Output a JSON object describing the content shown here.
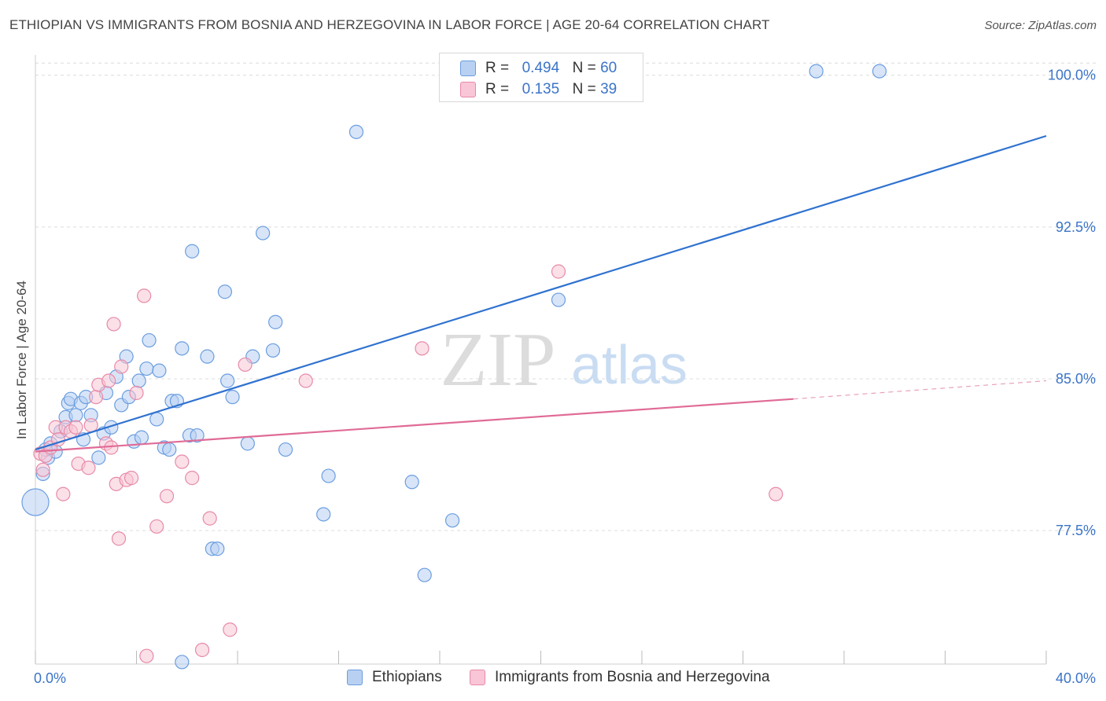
{
  "title": "ETHIOPIAN VS IMMIGRANTS FROM BOSNIA AND HERZEGOVINA IN LABOR FORCE | AGE 20-64 CORRELATION CHART",
  "source": "Source: ZipAtlas.com",
  "watermark": {
    "zip": "ZIP",
    "atlas": "atlas"
  },
  "legend_stats": [
    {
      "r_label": "R =",
      "r_value": "0.494",
      "n_label": "N =",
      "n_value": "60"
    },
    {
      "r_label": "R =",
      "r_value": "0.135",
      "n_label": "N =",
      "n_value": "39"
    }
  ],
  "chart_data": {
    "type": "scatter",
    "xlabel": "",
    "ylabel": "In Labor Force | Age 20-64",
    "xlim": [
      0,
      40
    ],
    "ylim": [
      70.9,
      101.0
    ],
    "x_tick_labels": [
      "0.0%",
      "40.0%"
    ],
    "y_ticks": [
      77.5,
      85.0,
      92.5,
      100.0
    ],
    "y_tick_labels": [
      "77.5%",
      "85.0%",
      "92.5%",
      "100.0%"
    ],
    "grid": true,
    "series": [
      {
        "name": "Ethiopians",
        "color": "#6b9ee0",
        "fill": "#b8d0f2",
        "points": [
          [
            0.0,
            78.9
          ],
          [
            0.3,
            80.3
          ],
          [
            0.5,
            81.1
          ],
          [
            0.6,
            81.8
          ],
          [
            0.8,
            81.4
          ],
          [
            1.0,
            82.4
          ],
          [
            1.2,
            83.1
          ],
          [
            1.3,
            83.8
          ],
          [
            1.4,
            84.0
          ],
          [
            1.6,
            83.2
          ],
          [
            1.8,
            83.8
          ],
          [
            1.9,
            82.0
          ],
          [
            2.0,
            84.1
          ],
          [
            2.2,
            83.2
          ],
          [
            2.5,
            81.1
          ],
          [
            2.7,
            82.3
          ],
          [
            2.8,
            84.3
          ],
          [
            3.0,
            82.6
          ],
          [
            3.2,
            85.1
          ],
          [
            3.4,
            83.7
          ],
          [
            3.6,
            86.1
          ],
          [
            3.7,
            84.1
          ],
          [
            3.9,
            81.9
          ],
          [
            4.1,
            84.9
          ],
          [
            4.2,
            82.1
          ],
          [
            4.4,
            85.5
          ],
          [
            4.5,
            86.9
          ],
          [
            4.8,
            83.0
          ],
          [
            4.9,
            85.4
          ],
          [
            5.1,
            81.6
          ],
          [
            5.3,
            81.5
          ],
          [
            5.4,
            83.9
          ],
          [
            5.6,
            83.9
          ],
          [
            5.8,
            86.5
          ],
          [
            6.1,
            82.2
          ],
          [
            6.2,
            91.3
          ],
          [
            6.4,
            82.2
          ],
          [
            6.8,
            86.1
          ],
          [
            7.0,
            76.6
          ],
          [
            7.2,
            76.6
          ],
          [
            7.5,
            89.3
          ],
          [
            7.6,
            84.9
          ],
          [
            7.8,
            84.1
          ],
          [
            8.4,
            81.8
          ],
          [
            8.6,
            86.1
          ],
          [
            9.0,
            92.2
          ],
          [
            9.4,
            86.4
          ],
          [
            9.5,
            87.8
          ],
          [
            9.9,
            81.5
          ],
          [
            11.6,
            80.2
          ],
          [
            11.4,
            78.3
          ],
          [
            12.7,
            97.2
          ],
          [
            14.9,
            79.9
          ],
          [
            15.4,
            75.3
          ],
          [
            16.5,
            78.0
          ],
          [
            20.7,
            88.9
          ],
          [
            5.8,
            71.0
          ],
          [
            30.9,
            100.2
          ],
          [
            33.4,
            100.2
          ],
          [
            0.4,
            81.5
          ]
        ],
        "trend": {
          "x": [
            0,
            40
          ],
          "y": [
            81.5,
            97.0
          ]
        }
      },
      {
        "name": "Immigrants from Bosnia and Herzegovina",
        "color": "#e88aa8",
        "fill": "#f8c6d6",
        "points": [
          [
            0.2,
            81.3
          ],
          [
            0.3,
            80.5
          ],
          [
            0.4,
            81.2
          ],
          [
            0.6,
            81.6
          ],
          [
            0.8,
            82.6
          ],
          [
            0.9,
            82.0
          ],
          [
            1.1,
            79.3
          ],
          [
            1.2,
            82.6
          ],
          [
            1.4,
            82.4
          ],
          [
            1.6,
            82.6
          ],
          [
            1.7,
            80.8
          ],
          [
            2.1,
            80.6
          ],
          [
            2.2,
            82.7
          ],
          [
            2.4,
            84.1
          ],
          [
            2.5,
            84.7
          ],
          [
            2.8,
            81.8
          ],
          [
            2.9,
            84.9
          ],
          [
            3.0,
            81.6
          ],
          [
            3.1,
            87.7
          ],
          [
            3.2,
            79.8
          ],
          [
            3.3,
            77.1
          ],
          [
            3.4,
            85.6
          ],
          [
            3.6,
            80.0
          ],
          [
            3.8,
            80.1
          ],
          [
            4.0,
            84.3
          ],
          [
            4.3,
            89.1
          ],
          [
            4.4,
            71.3
          ],
          [
            4.8,
            77.7
          ],
          [
            5.2,
            79.2
          ],
          [
            5.8,
            80.9
          ],
          [
            6.2,
            80.1
          ],
          [
            6.6,
            71.6
          ],
          [
            6.9,
            78.1
          ],
          [
            7.7,
            72.6
          ],
          [
            8.3,
            85.7
          ],
          [
            10.7,
            84.9
          ],
          [
            15.3,
            86.5
          ],
          [
            20.7,
            90.3
          ],
          [
            29.3,
            79.3
          ]
        ],
        "trend": {
          "x": [
            0,
            30
          ],
          "y": [
            81.4,
            84.0
          ]
        },
        "trend_dashed": {
          "x": [
            30,
            40
          ],
          "y": [
            84.0,
            84.9
          ]
        }
      }
    ]
  },
  "bottom_legend": [
    "Ethiopians",
    "Immigrants from Bosnia and Herzegovina"
  ]
}
